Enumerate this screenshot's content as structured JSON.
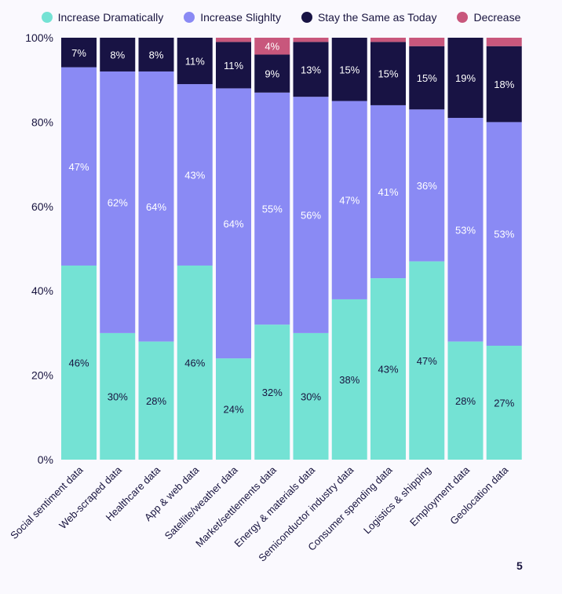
{
  "chart_data": {
    "type": "bar",
    "stacked": true,
    "title": "",
    "xlabel": "",
    "ylabel": "",
    "ylim": [
      0,
      100
    ],
    "yticks": [
      "0%",
      "20%",
      "40%",
      "60%",
      "80%",
      "100%"
    ],
    "legend_position": "top",
    "categories": [
      "Social sentiment data",
      "Web-scraped data",
      "Healthcare data",
      "App & web data",
      "Satellite/weather data",
      "Market/settlements data",
      "Energy & materials data",
      "Semiconductor industry data",
      "Consumer spending data",
      "Logistics & shipping",
      "Employment data",
      "Geolocation data"
    ],
    "series": [
      {
        "name": "Increase Dramatically",
        "color": "#74e2d4",
        "label_color": "#18143f",
        "values": [
          46,
          30,
          28,
          46,
          24,
          32,
          30,
          38,
          43,
          47,
          28,
          27
        ]
      },
      {
        "name": "Increase Slighlty",
        "color": "#8a8af4",
        "label_color": "#ffffff",
        "values": [
          47,
          62,
          64,
          43,
          64,
          55,
          56,
          47,
          41,
          36,
          53,
          53
        ]
      },
      {
        "name": "Stay the Same as Today",
        "color": "#181344",
        "label_color": "#ffffff",
        "values": [
          7,
          8,
          8,
          11,
          11,
          9,
          13,
          15,
          15,
          15,
          19,
          18
        ]
      },
      {
        "name": "Decrease",
        "color": "#c8577c",
        "label_color": "#ffffff",
        "values": [
          0,
          0,
          0,
          0,
          1,
          4,
          1,
          0,
          1,
          2,
          0,
          2
        ],
        "labeled": [
          false,
          false,
          false,
          false,
          false,
          true,
          false,
          false,
          false,
          false,
          false,
          false
        ]
      }
    ]
  },
  "page_number": "5"
}
